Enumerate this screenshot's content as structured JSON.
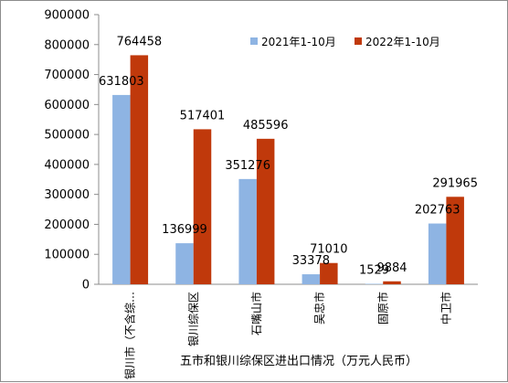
{
  "chart_data": {
    "type": "bar",
    "title": "五市和银川综保区进出口情况（万元人民币）",
    "categories": [
      "银川市（不含综…",
      "银川综保区",
      "石嘴山市",
      "吴忠市",
      "固原市",
      "中卫市"
    ],
    "series": [
      {
        "name": "2021年1-10月",
        "color": "#8eb4e3",
        "values": [
          631803,
          136999,
          351276,
          33378,
          1529,
          202763
        ]
      },
      {
        "name": "2022年1-10月",
        "color": "#c0390b",
        "values": [
          764458,
          517401,
          485596,
          71010,
          9884,
          291965
        ]
      }
    ],
    "ylim": [
      0,
      900000
    ],
    "yticks": [
      0,
      100000,
      200000,
      300000,
      400000,
      500000,
      600000,
      700000,
      800000,
      900000
    ],
    "grid": false,
    "legend_position": "top-right"
  }
}
